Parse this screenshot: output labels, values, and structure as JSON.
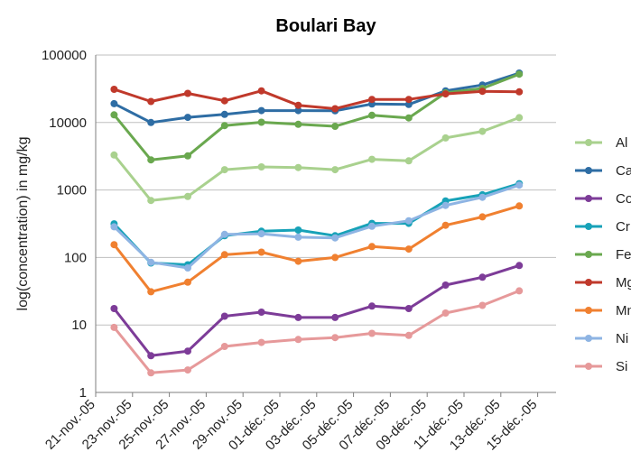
{
  "chart_data": {
    "type": "line",
    "title": "Boulari Bay",
    "ylabel": "log(concentration) in mg/kg",
    "xlabel": "",
    "y_scale": "log",
    "ylim": [
      1,
      100000
    ],
    "y_ticks": [
      "1",
      "10",
      "100",
      "1000",
      "10000",
      "100000"
    ],
    "x_ticks": [
      "21-nov.-05",
      "23-nov.-05",
      "25-nov.-05",
      "27-nov.-05",
      "29-nov.-05",
      "01-déc.-05",
      "03-déc.-05",
      "05-déc.-05",
      "07-déc.-05",
      "09-déc.-05",
      "11-déc.-05",
      "13-déc.-05",
      "15-déc.-05"
    ],
    "x_range": [
      "2005-11-21",
      "2005-12-16"
    ],
    "x": [
      "2005-11-22",
      "2005-11-24",
      "2005-11-26",
      "2005-11-28",
      "2005-11-30",
      "2005-12-02",
      "2005-12-04",
      "2005-12-06",
      "2005-12-08",
      "2005-12-10",
      "2005-12-12",
      "2005-12-14",
      "2005-12-16"
    ],
    "grid": "horizontal",
    "legend_position": "right",
    "series": [
      {
        "name": "Al",
        "color": "#a9d18e",
        "values": [
          3300,
          700,
          800,
          2000,
          2200,
          2150,
          2000,
          2850,
          2700,
          5900,
          7400,
          11800,
          null
        ]
      },
      {
        "name": "Ca",
        "color": "#2e6da4",
        "values": [
          19000,
          10000,
          11900,
          13200,
          15000,
          15000,
          14900,
          18800,
          18500,
          29500,
          36000,
          54000,
          null
        ]
      },
      {
        "name": "Co",
        "color": "#7d3c98",
        "values": [
          17.5,
          3.5,
          4.1,
          13.5,
          15.5,
          12.9,
          12.9,
          19,
          17.5,
          39,
          51,
          76,
          null
        ]
      },
      {
        "name": "Cr",
        "color": "#17a2b8",
        "values": [
          315,
          83,
          78,
          210,
          245,
          255,
          210,
          320,
          320,
          690,
          850,
          1240,
          null
        ]
      },
      {
        "name": "Fe",
        "color": "#6aa84f",
        "values": [
          13000,
          2800,
          3200,
          9000,
          10100,
          9400,
          8800,
          12800,
          11700,
          27500,
          32000,
          52000,
          null
        ]
      },
      {
        "name": "Mg",
        "color": "#c0392b",
        "values": [
          31000,
          20500,
          27000,
          21000,
          29500,
          18000,
          16000,
          22000,
          22000,
          26500,
          29000,
          28500,
          null
        ]
      },
      {
        "name": "Mn",
        "color": "#f08030",
        "values": [
          155,
          31,
          43,
          110,
          120,
          88,
          100,
          145,
          133,
          300,
          400,
          580,
          null
        ]
      },
      {
        "name": "Ni",
        "color": "#8eb4e3",
        "values": [
          285,
          85,
          70,
          220,
          225,
          200,
          195,
          290,
          350,
          590,
          780,
          1180,
          null
        ]
      },
      {
        "name": "Si",
        "color": "#e6999a",
        "values": [
          9.2,
          1.95,
          2.15,
          4.8,
          5.5,
          6.1,
          6.5,
          7.5,
          7.0,
          15,
          19.5,
          32,
          null
        ]
      }
    ]
  }
}
